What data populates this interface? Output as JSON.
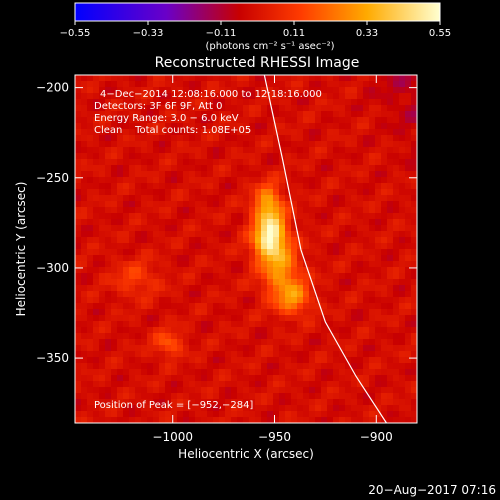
{
  "chart_data": {
    "type": "heatmap",
    "title": "Reconstructed RHESSI Image",
    "xlabel": "Heliocentric X (arcsec)",
    "ylabel": "Heliocentric Y (arcsec)",
    "xlim": [
      -1048,
      -880
    ],
    "ylim": [
      -386,
      -193
    ],
    "x_ticks": [
      -1000,
      -950,
      -900
    ],
    "x_tick_labels": [
      "−1000",
      "−950",
      "−900"
    ],
    "y_ticks": [
      -200,
      -250,
      -300,
      -350
    ],
    "y_tick_labels": [
      "−200",
      "−250",
      "−300",
      "−350"
    ],
    "colorbar": {
      "min": -0.55,
      "max": 0.55,
      "ticks": [
        -0.55,
        -0.33,
        -0.11,
        0.11,
        0.33,
        0.55
      ],
      "tick_labels": [
        "−0.55",
        "−0.33",
        "−0.11",
        "0.11",
        "0.33",
        "0.55"
      ],
      "units": "(photons cm⁻² s⁻¹ asec⁻²)",
      "colors": [
        "#0000ff",
        "#8a00c0",
        "#c80000",
        "#ff5000",
        "#ffb000",
        "#ffffc0"
      ]
    },
    "annotations": {
      "time": "4−Dec−2014 12:08:16.000 to 12:18:16.000",
      "detectors": "Detectors: 3F 6F 9F, Att 0",
      "energy": "Energy Range: 3.0 − 6.0 keV",
      "clean": "Clean    Total counts: 1.08E+05",
      "peak": "Position of Peak = [−952,−284]"
    },
    "peak": {
      "x": -952,
      "y": -284
    },
    "sources": [
      {
        "x": -952,
        "y": -284,
        "sx": 6,
        "sy": 9,
        "amp": 0.55
      },
      {
        "x": -953,
        "y": -265,
        "sx": 5,
        "sy": 8,
        "amp": 0.33
      },
      {
        "x": -946,
        "y": -305,
        "sx": 7,
        "sy": 10,
        "amp": 0.28
      },
      {
        "x": -940,
        "y": -318,
        "sx": 6,
        "sy": 6,
        "amp": 0.22
      },
      {
        "x": -1002,
        "y": -342,
        "sx": 5,
        "sy": 5,
        "amp": 0.2
      },
      {
        "x": -1018,
        "y": -306,
        "sx": 8,
        "sy": 7,
        "amp": 0.14
      }
    ],
    "limb_curve": [
      [
        -955,
        -193
      ],
      [
        -946,
        -240
      ],
      [
        -937,
        -290
      ],
      [
        -925,
        -330
      ],
      [
        -910,
        -360
      ],
      [
        -895,
        -386
      ]
    ],
    "footer": "20−Aug−2017 07:16"
  }
}
